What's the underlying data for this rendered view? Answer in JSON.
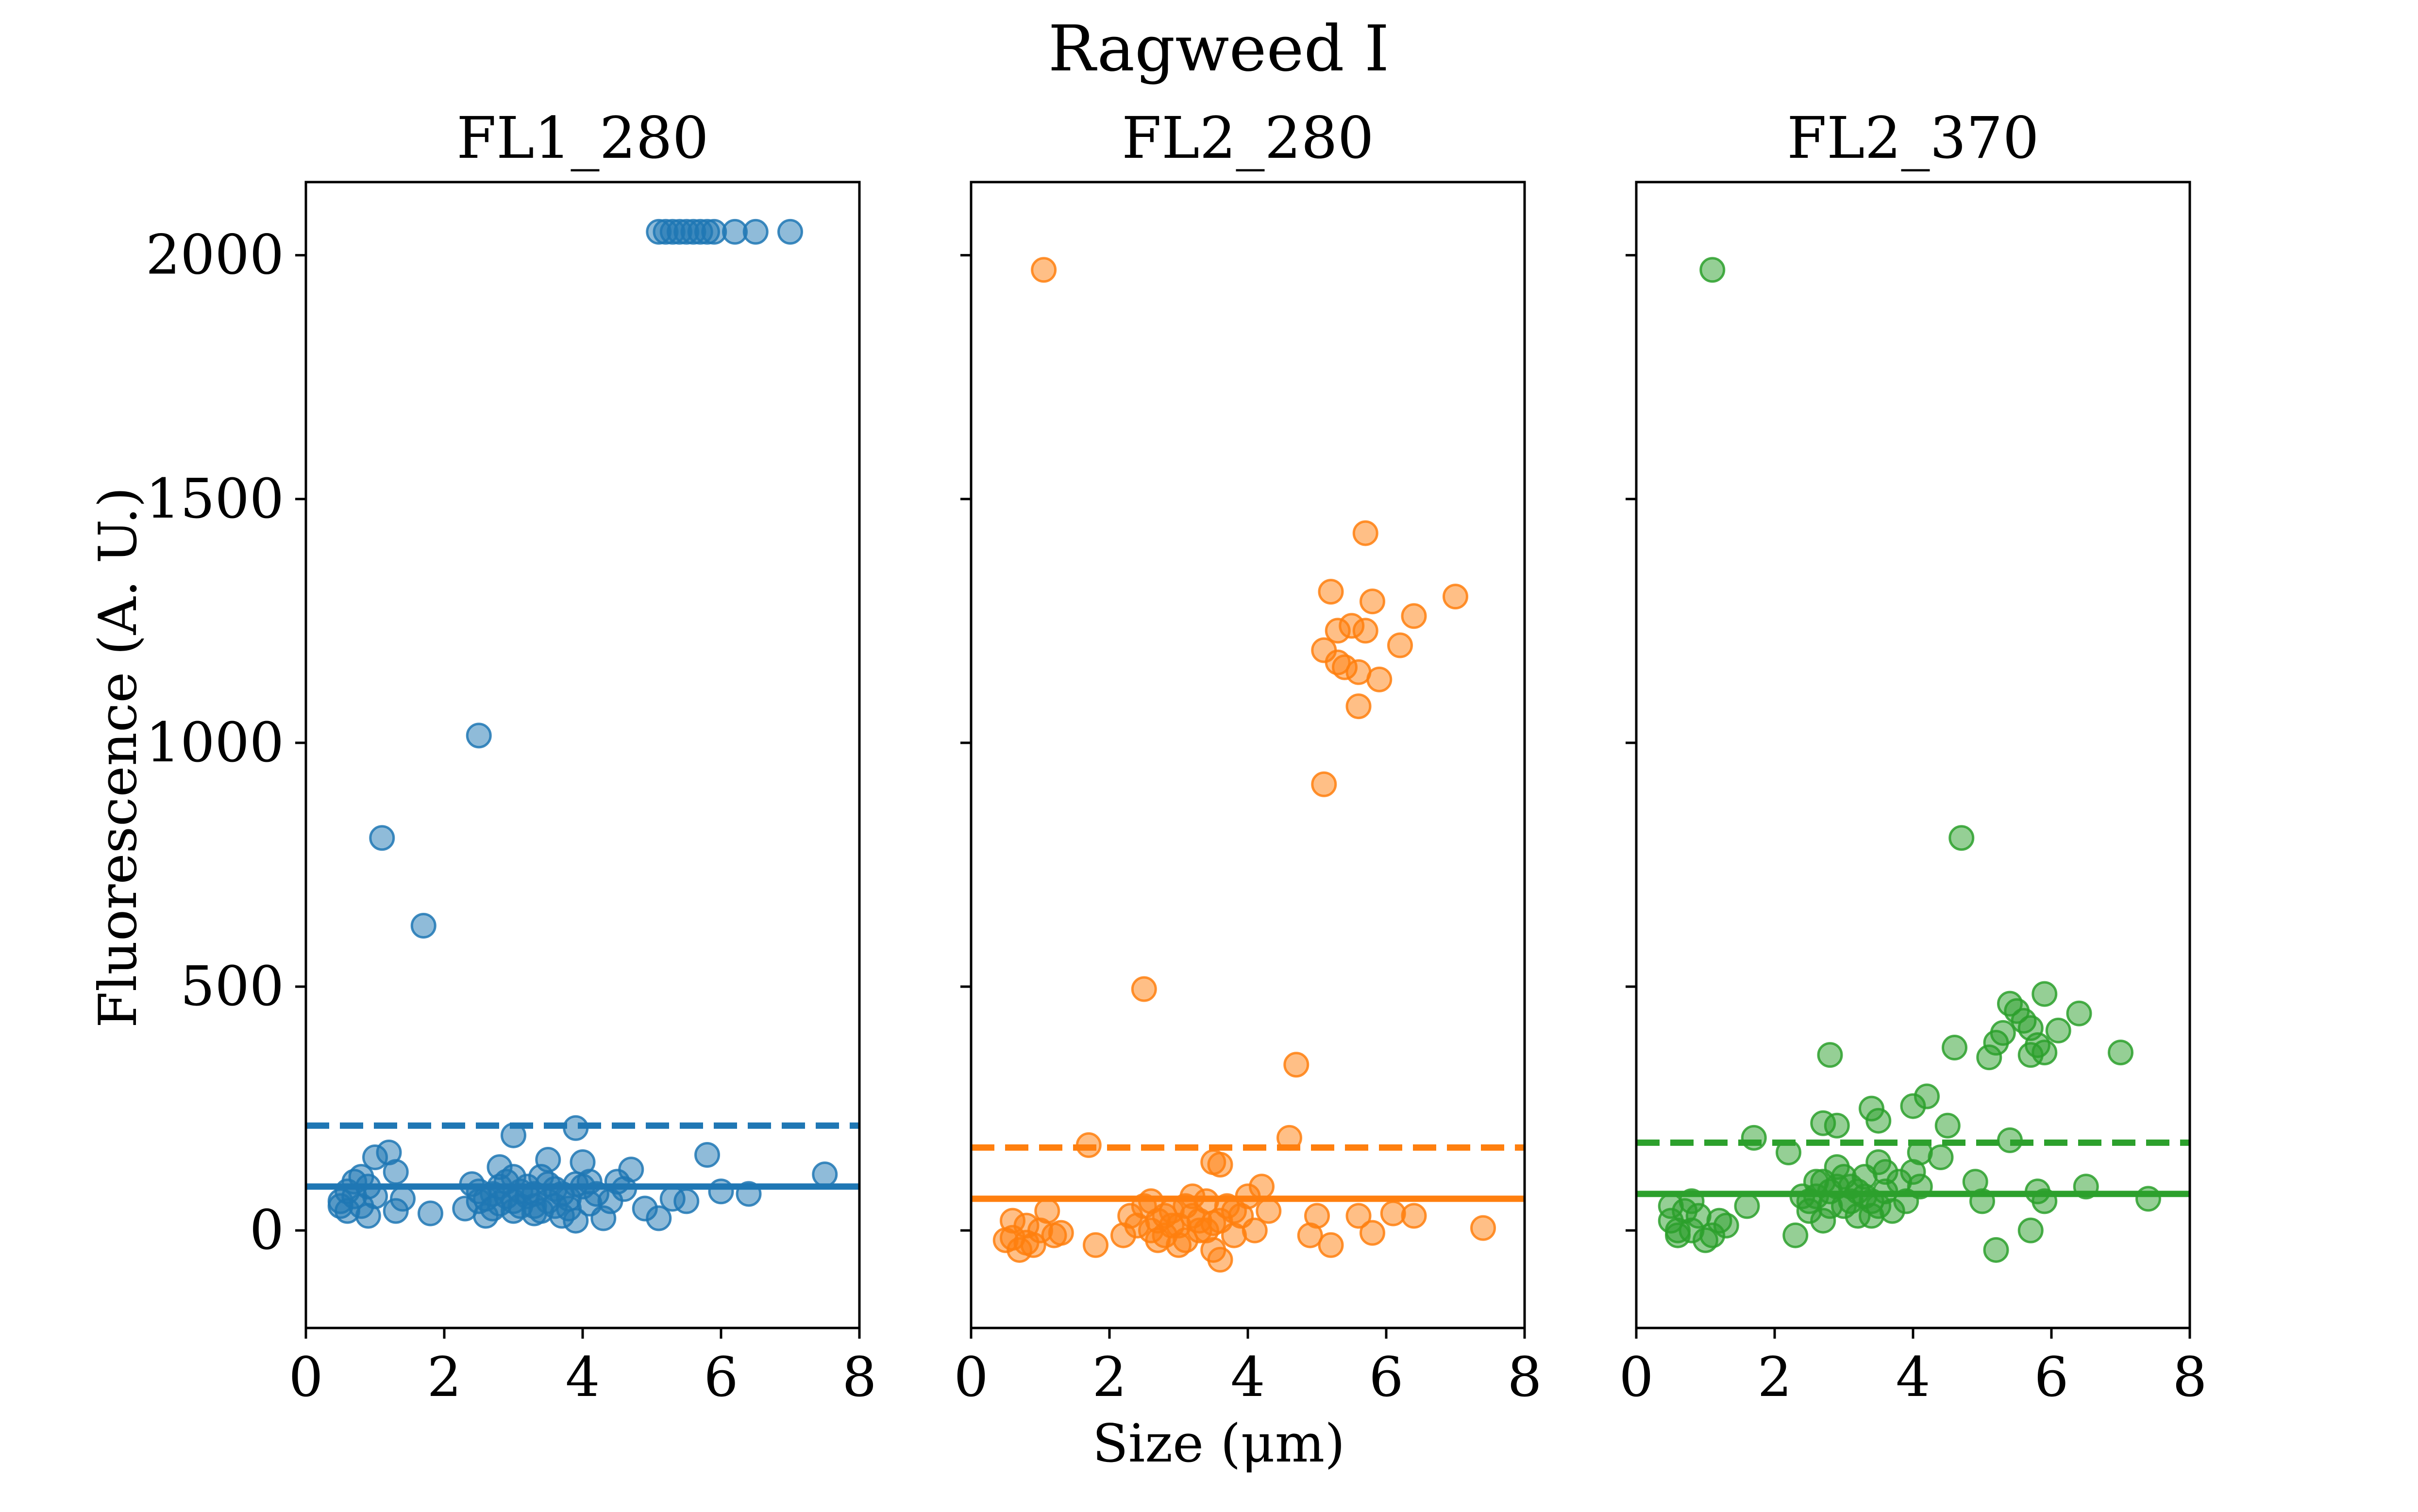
{
  "figure": {
    "title": "Ragweed I",
    "xlabel": "Size (μm)",
    "ylabel": "Fluorescence (A. U.)"
  },
  "colors": {
    "FL1_280": "#1f77b4",
    "FL2_280": "#ff7f0e",
    "FL2_370": "#2ca02c"
  },
  "chart_data": [
    {
      "type": "scatter",
      "title": "FL1_280",
      "xlim": [
        0,
        8
      ],
      "ylim": [
        -200,
        2150
      ],
      "x_ticks": [
        0,
        2,
        4,
        6,
        8
      ],
      "y_ticks": [
        0,
        500,
        1000,
        1500,
        2000
      ],
      "median_line": 90,
      "threshold_dashed": 215,
      "points": [
        [
          5.1,
          2048
        ],
        [
          5.2,
          2048
        ],
        [
          5.3,
          2048
        ],
        [
          5.4,
          2048
        ],
        [
          5.5,
          2048
        ],
        [
          5.6,
          2048
        ],
        [
          5.7,
          2048
        ],
        [
          5.8,
          2048
        ],
        [
          5.9,
          2048
        ],
        [
          6.2,
          2048
        ],
        [
          6.5,
          2048
        ],
        [
          7.0,
          2048
        ],
        [
          2.5,
          1015
        ],
        [
          1.1,
          805
        ],
        [
          1.7,
          625
        ],
        [
          3.9,
          210
        ],
        [
          3.0,
          195
        ],
        [
          2.8,
          130
        ],
        [
          3.5,
          145
        ],
        [
          1.0,
          150
        ],
        [
          1.2,
          160
        ],
        [
          1.3,
          120
        ],
        [
          4.7,
          125
        ],
        [
          0.8,
          110
        ],
        [
          5.8,
          155
        ],
        [
          6.0,
          80
        ],
        [
          7.5,
          115
        ],
        [
          0.5,
          60
        ],
        [
          0.6,
          80
        ],
        [
          0.7,
          100
        ],
        [
          0.8,
          50
        ],
        [
          0.9,
          30
        ],
        [
          1.0,
          70
        ],
        [
          1.4,
          65
        ],
        [
          1.3,
          40
        ],
        [
          0.6,
          40
        ],
        [
          0.5,
          50
        ],
        [
          0.7,
          70
        ],
        [
          0.9,
          90
        ],
        [
          1.8,
          35
        ],
        [
          2.3,
          45
        ],
        [
          2.4,
          95
        ],
        [
          2.5,
          60
        ],
        [
          2.6,
          30
        ],
        [
          2.7,
          75
        ],
        [
          2.8,
          55
        ],
        [
          2.9,
          100
        ],
        [
          3.0,
          40
        ],
        [
          3.1,
          80
        ],
        [
          3.2,
          70
        ],
        [
          3.3,
          50
        ],
        [
          3.4,
          110
        ],
        [
          3.5,
          60
        ],
        [
          3.6,
          85
        ],
        [
          3.7,
          30
        ],
        [
          3.8,
          65
        ],
        [
          3.9,
          95
        ],
        [
          4.0,
          140
        ],
        [
          4.1,
          55
        ],
        [
          4.2,
          75
        ],
        [
          4.3,
          25
        ],
        [
          4.5,
          100
        ],
        [
          4.6,
          85
        ],
        [
          4.9,
          45
        ],
        [
          5.1,
          25
        ],
        [
          5.3,
          65
        ],
        [
          5.5,
          60
        ],
        [
          6.4,
          75
        ],
        [
          2.6,
          65
        ],
        [
          2.7,
          45
        ],
        [
          2.8,
          90
        ],
        [
          3.0,
          60
        ],
        [
          3.1,
          50
        ],
        [
          3.2,
          90
        ],
        [
          3.3,
          75
        ],
        [
          3.4,
          40
        ],
        [
          3.6,
          50
        ],
        [
          3.7,
          75
        ],
        [
          3.8,
          45
        ],
        [
          4.0,
          90
        ],
        [
          4.4,
          60
        ],
        [
          2.9,
          70
        ],
        [
          3.5,
          95
        ],
        [
          3.9,
          20
        ],
        [
          3.3,
          35
        ],
        [
          3.0,
          110
        ],
        [
          2.5,
          80
        ],
        [
          4.1,
          100
        ]
      ]
    },
    {
      "type": "scatter",
      "title": "FL2_280",
      "xlim": [
        0,
        8
      ],
      "ylim": [
        -200,
        2150
      ],
      "x_ticks": [
        0,
        2,
        4,
        6,
        8
      ],
      "y_ticks": [
        0,
        500,
        1000,
        1500,
        2000
      ],
      "median_line": 65,
      "threshold_dashed": 170,
      "points": [
        [
          1.05,
          1970
        ],
        [
          5.7,
          1430
        ],
        [
          5.2,
          1310
        ],
        [
          5.8,
          1290
        ],
        [
          7.0,
          1300
        ],
        [
          6.4,
          1260
        ],
        [
          5.5,
          1240
        ],
        [
          5.7,
          1230
        ],
        [
          5.3,
          1230
        ],
        [
          5.1,
          1190
        ],
        [
          6.2,
          1200
        ],
        [
          5.3,
          1165
        ],
        [
          5.4,
          1155
        ],
        [
          5.6,
          1145
        ],
        [
          5.9,
          1130
        ],
        [
          5.6,
          1075
        ],
        [
          5.1,
          915
        ],
        [
          2.5,
          495
        ],
        [
          4.7,
          340
        ],
        [
          4.6,
          190
        ],
        [
          1.7,
          175
        ],
        [
          3.5,
          140
        ],
        [
          3.6,
          135
        ],
        [
          0.5,
          -20
        ],
        [
          0.6,
          20
        ],
        [
          0.7,
          -40
        ],
        [
          0.8,
          10
        ],
        [
          0.9,
          -30
        ],
        [
          1.0,
          0
        ],
        [
          1.1,
          40
        ],
        [
          1.2,
          -10
        ],
        [
          1.3,
          -5
        ],
        [
          0.6,
          -15
        ],
        [
          0.8,
          -25
        ],
        [
          1.8,
          -30
        ],
        [
          2.2,
          -10
        ],
        [
          2.3,
          30
        ],
        [
          2.4,
          10
        ],
        [
          2.5,
          50
        ],
        [
          2.6,
          0
        ],
        [
          2.7,
          20
        ],
        [
          2.8,
          -10
        ],
        [
          2.9,
          40
        ],
        [
          3.0,
          10
        ],
        [
          3.1,
          -20
        ],
        [
          3.2,
          30
        ],
        [
          3.3,
          0
        ],
        [
          3.4,
          60
        ],
        [
          3.5,
          -40
        ],
        [
          3.6,
          20
        ],
        [
          3.7,
          50
        ],
        [
          3.8,
          -10
        ],
        [
          3.9,
          30
        ],
        [
          4.0,
          70
        ],
        [
          4.1,
          0
        ],
        [
          4.2,
          90
        ],
        [
          4.3,
          40
        ],
        [
          4.9,
          -10
        ],
        [
          5.0,
          30
        ],
        [
          5.2,
          -30
        ],
        [
          5.6,
          30
        ],
        [
          5.8,
          -5
        ],
        [
          6.1,
          35
        ],
        [
          6.4,
          30
        ],
        [
          7.4,
          5
        ],
        [
          2.6,
          60
        ],
        [
          2.8,
          30
        ],
        [
          3.0,
          -30
        ],
        [
          3.2,
          70
        ],
        [
          3.4,
          0
        ],
        [
          3.6,
          -60
        ],
        [
          3.8,
          40
        ],
        [
          2.9,
          10
        ],
        [
          3.1,
          50
        ],
        [
          3.3,
          20
        ],
        [
          2.7,
          -20
        ],
        [
          3.5,
          15
        ]
      ]
    },
    {
      "type": "scatter",
      "title": "FL2_370",
      "xlim": [
        0,
        8
      ],
      "ylim": [
        -200,
        2150
      ],
      "x_ticks": [
        0,
        2,
        4,
        6,
        8
      ],
      "y_ticks": [
        0,
        500,
        1000,
        1500,
        2000
      ],
      "median_line": 75,
      "threshold_dashed": 180,
      "points": [
        [
          1.1,
          1970
        ],
        [
          4.7,
          805
        ],
        [
          5.9,
          485
        ],
        [
          5.4,
          465
        ],
        [
          5.5,
          450
        ],
        [
          6.4,
          445
        ],
        [
          5.6,
          430
        ],
        [
          5.7,
          415
        ],
        [
          5.3,
          405
        ],
        [
          6.1,
          410
        ],
        [
          5.2,
          385
        ],
        [
          4.6,
          375
        ],
        [
          5.8,
          380
        ],
        [
          5.9,
          365
        ],
        [
          5.7,
          360
        ],
        [
          7.0,
          365
        ],
        [
          5.1,
          355
        ],
        [
          2.8,
          360
        ],
        [
          4.5,
          215
        ],
        [
          4.2,
          275
        ],
        [
          4.0,
          255
        ],
        [
          3.4,
          250
        ],
        [
          2.7,
          220
        ],
        [
          2.9,
          215
        ],
        [
          3.5,
          225
        ],
        [
          4.1,
          160
        ],
        [
          4.4,
          150
        ],
        [
          5.4,
          185
        ],
        [
          1.7,
          190
        ],
        [
          0.5,
          20
        ],
        [
          0.6,
          -10
        ],
        [
          0.7,
          40
        ],
        [
          0.8,
          0
        ],
        [
          0.9,
          30
        ],
        [
          1.0,
          -20
        ],
        [
          1.2,
          20
        ],
        [
          1.3,
          10
        ],
        [
          0.5,
          50
        ],
        [
          0.6,
          0
        ],
        [
          1.1,
          -10
        ],
        [
          0.8,
          60
        ],
        [
          1.6,
          50
        ],
        [
          2.2,
          160
        ],
        [
          2.3,
          -10
        ],
        [
          2.4,
          70
        ],
        [
          2.5,
          40
        ],
        [
          2.6,
          100
        ],
        [
          2.7,
          20
        ],
        [
          2.8,
          80
        ],
        [
          2.9,
          130
        ],
        [
          3.0,
          50
        ],
        [
          3.1,
          90
        ],
        [
          3.2,
          30
        ],
        [
          3.3,
          110
        ],
        [
          3.4,
          60
        ],
        [
          3.5,
          140
        ],
        [
          3.6,
          80
        ],
        [
          3.7,
          40
        ],
        [
          3.8,
          100
        ],
        [
          3.9,
          60
        ],
        [
          4.0,
          120
        ],
        [
          4.1,
          90
        ],
        [
          4.9,
          100
        ],
        [
          5.0,
          60
        ],
        [
          5.2,
          -40
        ],
        [
          5.7,
          0
        ],
        [
          5.8,
          80
        ],
        [
          5.9,
          60
        ],
        [
          6.5,
          90
        ],
        [
          7.4,
          65
        ],
        [
          2.6,
          70
        ],
        [
          2.8,
          50
        ],
        [
          3.0,
          110
        ],
        [
          3.2,
          80
        ],
        [
          3.4,
          30
        ],
        [
          3.1,
          60
        ],
        [
          2.9,
          90
        ],
        [
          3.3,
          70
        ],
        [
          2.7,
          100
        ],
        [
          3.5,
          50
        ],
        [
          3.6,
          120
        ],
        [
          2.5,
          60
        ]
      ]
    }
  ]
}
